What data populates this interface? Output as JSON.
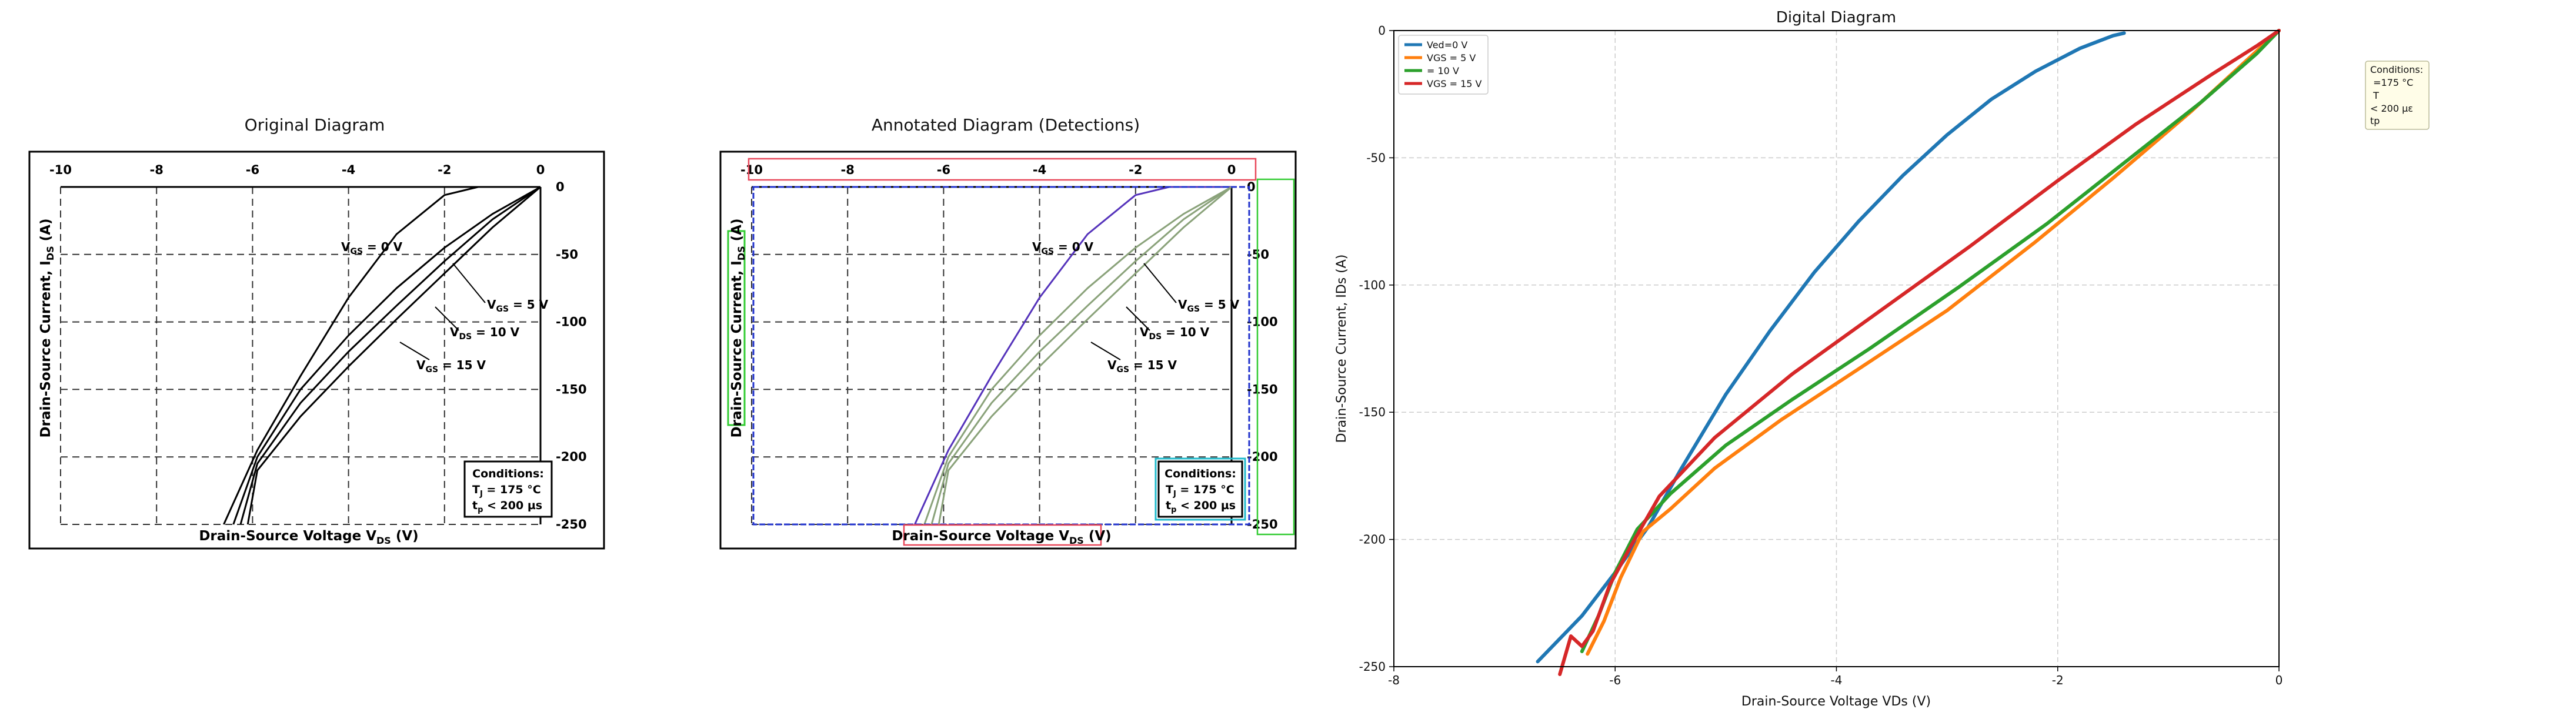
{
  "panels": {
    "original": {
      "title": "Original Diagram",
      "xticks": [
        "-10",
        "-8",
        "-6",
        "-4",
        "-2",
        "0"
      ],
      "yticks": [
        "0",
        "-50",
        "-100",
        "-150",
        "-200",
        "-250"
      ],
      "xlabel": "Drain-Source Voltage V",
      "xlabel_sub": "DS",
      "xlabel_unit": " (V)",
      "ylabel": "Drain-Source Current, I",
      "ylabel_sub": "DS",
      "ylabel_unit": " (A)",
      "curve_labels": [
        {
          "main": "V",
          "sub": "GS",
          "rest": " = 0 V"
        },
        {
          "main": "V",
          "sub": "GS",
          "rest": " = 5 V"
        },
        {
          "main": "V",
          "sub": "DS",
          "rest": " = 10 V"
        },
        {
          "main": "V",
          "sub": "GS",
          "rest": " = 15 V"
        }
      ],
      "conditions": {
        "title": "Conditions:",
        "line1_main": "T",
        "line1_sub": "J",
        "line1_rest": " = 175 °C",
        "line2_main": "t",
        "line2_sub": "p",
        "line2_rest": " < 200 µs"
      }
    },
    "annotated": {
      "title": "Annotated Diagram (Detections)"
    },
    "digital": {
      "title": "Digital Diagram",
      "conditions_lines": [
        "Conditions:",
        " =175 °C",
        " T",
        "< 200 µε",
        "tp"
      ]
    }
  },
  "colors": {
    "blue": "#1f77b4",
    "orange": "#ff7f0e",
    "green": "#2ca02c",
    "red": "#d62728",
    "det_red": "#e8485a",
    "det_blue": "#2233cc",
    "det_green": "#33cc33",
    "det_cyan": "#22bbcc",
    "purple": "#5533bb",
    "olive": "#8aa27a"
  },
  "chart_data": [
    {
      "type": "line",
      "title": "Digital Diagram",
      "xlabel": "Drain-Source Voltage VDs (V)",
      "ylabel": "Drain-Source Current, IDs (A)",
      "xlim": [
        -8,
        0
      ],
      "ylim": [
        -250,
        0
      ],
      "xticks": [
        -8,
        -6,
        -4,
        -2,
        0
      ],
      "yticks": [
        -250,
        -200,
        -150,
        -100,
        -50,
        0
      ],
      "grid": true,
      "legend_position": "top-left",
      "series": [
        {
          "name": "Ved=0 V",
          "color": "#1f77b4",
          "x": [
            -6.7,
            -6.3,
            -6.0,
            -5.7,
            -5.4,
            -5.0,
            -4.6,
            -4.2,
            -3.8,
            -3.4,
            -3.0,
            -2.6,
            -2.2,
            -1.8,
            -1.5,
            -1.4
          ],
          "y": [
            -248,
            -230,
            -213,
            -195,
            -172,
            -143,
            -118,
            -95,
            -75,
            -57,
            -41,
            -27,
            -16,
            -7,
            -2,
            -1
          ]
        },
        {
          "name": "VGS = 5 V",
          "color": "#ff7f0e",
          "x": [
            -6.25,
            -6.1,
            -5.95,
            -5.75,
            -5.5,
            -5.1,
            -4.5,
            -3.8,
            -3.0,
            -2.2,
            -1.5,
            -0.8,
            -0.3,
            0.0
          ],
          "y": [
            -245,
            -232,
            -215,
            -197,
            -188,
            -172,
            -153,
            -133,
            -110,
            -83,
            -58,
            -32,
            -12,
            0
          ]
        },
        {
          "name": "= 10 V",
          "color": "#2ca02c",
          "x": [
            -6.3,
            -6.15,
            -6.0,
            -5.8,
            -5.5,
            -5.0,
            -4.4,
            -3.7,
            -2.9,
            -2.1,
            -1.4,
            -0.7,
            -0.2,
            0.0
          ],
          "y": [
            -244,
            -230,
            -213,
            -196,
            -182,
            -163,
            -145,
            -125,
            -101,
            -76,
            -52,
            -28,
            -9,
            0
          ]
        },
        {
          "name": "VGS = 15 V",
          "color": "#d62728",
          "x": [
            -6.5,
            -6.4,
            -6.3,
            -6.2,
            -6.05,
            -5.85,
            -5.6,
            -5.1,
            -4.4,
            -3.6,
            -2.8,
            -2.0,
            -1.3,
            -0.6,
            -0.2,
            0.0
          ],
          "y": [
            -253,
            -238,
            -242,
            -236,
            -218,
            -202,
            -183,
            -160,
            -135,
            -110,
            -85,
            -59,
            -37,
            -17,
            -6,
            0
          ]
        }
      ]
    }
  ]
}
